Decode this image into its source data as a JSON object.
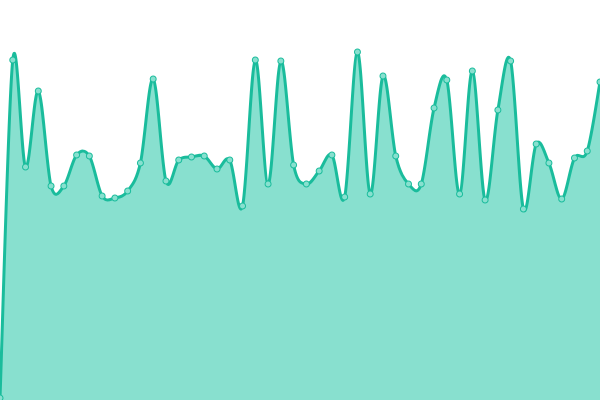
{
  "chart_data": {
    "type": "area",
    "title": "",
    "xlabel": "",
    "ylabel": "",
    "ylim": [
      0,
      400
    ],
    "grid": false,
    "axes_visible": false,
    "legend": "none",
    "curve": "smooth",
    "markers": true,
    "colors": {
      "line": "#1abc9c",
      "fill": "#88e0cf",
      "marker_fill": "#88e0cf",
      "marker_stroke": "#1abc9c"
    },
    "values": [
      2,
      340,
      233,
      309,
      214,
      214,
      245,
      244,
      204,
      202,
      209,
      237,
      321,
      219,
      240,
      243,
      244,
      231,
      240,
      194,
      340,
      216,
      339,
      235,
      216,
      229,
      245,
      203,
      348,
      206,
      324,
      244,
      216,
      216,
      292,
      320,
      206,
      329,
      200,
      290,
      339,
      191,
      256,
      237,
      201,
      242,
      249,
      318
    ]
  }
}
